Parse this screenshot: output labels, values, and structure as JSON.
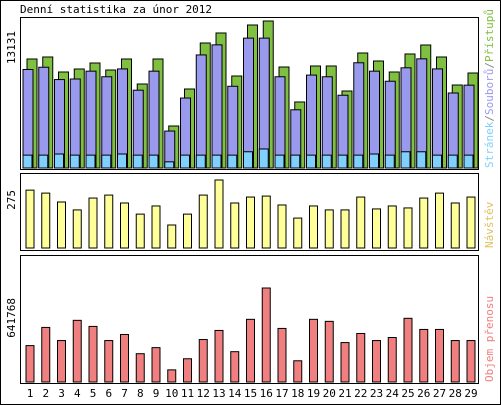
{
  "title": "Denní statistika za únor 2012",
  "separator": "/",
  "chart_data": [
    {
      "type": "bar",
      "series": [
        {
          "name": "Stránek",
          "color": "#80d0ff",
          "values": [
            1150,
            1150,
            1250,
            1150,
            1150,
            1150,
            1250,
            1150,
            1150,
            550,
            1150,
            1150,
            1150,
            1150,
            1450,
            1700,
            1150,
            1150,
            1150,
            1150,
            1150,
            1150,
            1250,
            1150,
            1450,
            1450,
            1150,
            1150,
            1150
          ]
        },
        {
          "name": "Souborů",
          "color": "#9999ee",
          "values": [
            8800,
            9000,
            7900,
            7950,
            8650,
            8150,
            8850,
            6950,
            8650,
            3300,
            6250,
            10100,
            11000,
            7300,
            11600,
            11600,
            8150,
            5200,
            8300,
            8150,
            6500,
            9400,
            8650,
            7750,
            8950,
            9750,
            8850,
            6700,
            7400
          ]
        },
        {
          "name": "Přístupů",
          "color": "#80c040",
          "values": [
            9737,
            9916,
            8576,
            8844,
            9380,
            8754,
            9737,
            7504,
            9737,
            3752,
            7057,
            11166,
            12060,
            8218,
            12774,
            13131,
            9022,
            5896,
            9112,
            9112,
            6878,
            10273,
            9558,
            8576,
            10184,
            10988,
            9916,
            7414,
            8486
          ]
        }
      ],
      "ylim": [
        0,
        13131
      ],
      "yticks": [
        13131
      ]
    },
    {
      "type": "bar",
      "series": [
        {
          "name": "Návštěv",
          "color": "#ffff99",
          "label_color": "#e0c060",
          "values": [
            234,
            222,
            186,
            154,
            202,
            214,
            182,
            137,
            170,
            93,
            137,
            214,
            275,
            182,
            206,
            210,
            174,
            121,
            170,
            154,
            154,
            206,
            158,
            170,
            162,
            202,
            222,
            182,
            206
          ]
        }
      ],
      "ylim": [
        0,
        275
      ],
      "yticks": [
        275
      ]
    },
    {
      "type": "bar",
      "categories": [
        "1",
        "2",
        "3",
        "4",
        "5",
        "6",
        "7",
        "8",
        "9",
        "10",
        "11",
        "12",
        "13",
        "14",
        "15",
        "16",
        "17",
        "18",
        "19",
        "20",
        "21",
        "22",
        "23",
        "24",
        "25",
        "26",
        "27",
        "28",
        "29"
      ],
      "category_colors": [
        "#000",
        "#000",
        "#000",
        "#66aa22",
        "#66aa22",
        "#000",
        "#000",
        "#000",
        "#000",
        "#000",
        "#66aa22",
        "#66aa22",
        "#000",
        "#000",
        "#000",
        "#000",
        "#000",
        "#66aa22",
        "#66aa22",
        "#000",
        "#000",
        "#000",
        "#000",
        "#000",
        "#66aa22",
        "#66aa22",
        "#000",
        "#000",
        "#000"
      ],
      "series": [
        {
          "name": "Objem přenosu",
          "color": "#f08080",
          "label_color": "#f08080",
          "values": [
            248436,
            372654,
            282941,
            420961,
            379555,
            282941,
            324347,
            193228,
            234634,
            82812,
            158723,
            289842,
            351951,
            207030,
            427862,
            641768,
            365753,
            144921,
            427862,
            414060,
            269139,
            331248,
            282941,
            303644,
            434763,
            358852,
            358852,
            282941,
            282941
          ]
        }
      ],
      "ylim": [
        0,
        641768
      ],
      "yticks": [
        641768
      ]
    }
  ]
}
